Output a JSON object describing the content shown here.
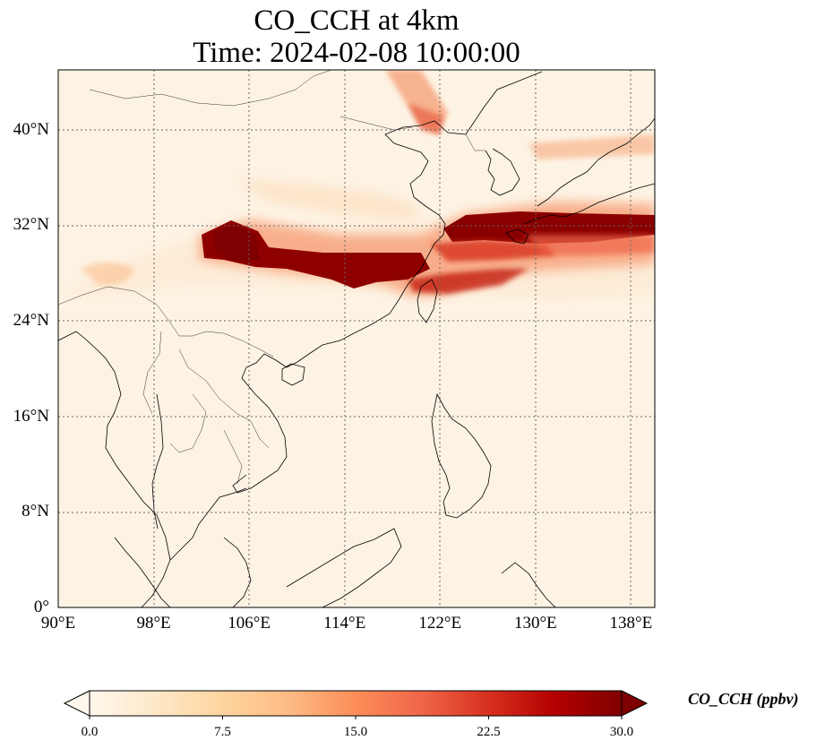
{
  "figure": {
    "title_line1": "CO_CCH at 4km",
    "title_line2": "Time: 2024-02-08 10:00:00"
  },
  "map": {
    "projection": "PlateCarree",
    "lon_range": [
      90,
      140
    ],
    "lat_range": [
      0,
      45
    ],
    "gridlines": "dotted",
    "colormap": "OrRd",
    "lat_ticks": [
      {
        "value": 40,
        "label": "40°N"
      },
      {
        "value": 32,
        "label": "32°N"
      },
      {
        "value": 24,
        "label": "24°N"
      },
      {
        "value": 16,
        "label": "16°N"
      },
      {
        "value": 8,
        "label": "8°N"
      },
      {
        "value": 0,
        "label": "0°"
      }
    ],
    "lon_ticks": [
      {
        "value": 90,
        "label": "90°E"
      },
      {
        "value": 98,
        "label": "98°E"
      },
      {
        "value": 106,
        "label": "106°E"
      },
      {
        "value": 114,
        "label": "114°E"
      },
      {
        "value": 122,
        "label": "122°E"
      },
      {
        "value": 130,
        "label": "130°E"
      },
      {
        "value": 138,
        "label": "138°E"
      }
    ]
  },
  "colorbar": {
    "label": "CO_CCH (ppbv)",
    "min": 0,
    "max": 30,
    "extend": "both",
    "ticks": [
      {
        "value": 0,
        "label": "0.0"
      },
      {
        "value": 7.5,
        "label": "7.5"
      },
      {
        "value": 15,
        "label": "15.0"
      },
      {
        "value": 22.5,
        "label": "22.5"
      },
      {
        "value": 30,
        "label": "30.0"
      }
    ],
    "colors": [
      "#fff7ec",
      "#fee8c8",
      "#fdd49e",
      "#fdbb84",
      "#fc8d59",
      "#ef6548",
      "#d7301f",
      "#b30000",
      "#7f0000"
    ]
  }
}
